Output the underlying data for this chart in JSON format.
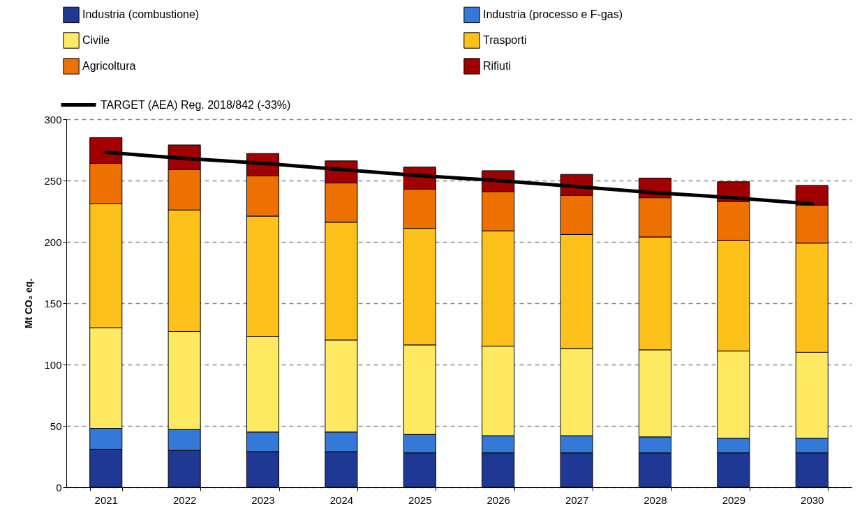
{
  "chart_data": {
    "type": "bar",
    "stacked": true,
    "ylabel": "Mt CO₂ eq.",
    "categories": [
      "2021",
      "2022",
      "2023",
      "2024",
      "2025",
      "2026",
      "2027",
      "2028",
      "2029",
      "2030"
    ],
    "ylim": [
      0,
      300
    ],
    "yticks": [
      0,
      50,
      100,
      150,
      200,
      250,
      300
    ],
    "grid": "y",
    "legend": "top left",
    "series": [
      {
        "name": "Industria (combustione)",
        "color": "#1f3893",
        "values": [
          31,
          30,
          29,
          29,
          28,
          28,
          28,
          28,
          28,
          28
        ]
      },
      {
        "name": "Industria (processo e F-gas)",
        "color": "#3579d8",
        "values": [
          17,
          17,
          16,
          16,
          15,
          14,
          14,
          13,
          12,
          12
        ]
      },
      {
        "name": "Civile",
        "color": "#fde962",
        "values": [
          82,
          80,
          78,
          75,
          73,
          73,
          71,
          71,
          71,
          70
        ]
      },
      {
        "name": "Trasporti",
        "color": "#fdc11c",
        "values": [
          101,
          99,
          98,
          96,
          95,
          94,
          93,
          92,
          90,
          89
        ]
      },
      {
        "name": "Agricoltura",
        "color": "#ec7100",
        "values": [
          33,
          33,
          33,
          32,
          32,
          32,
          32,
          32,
          32,
          31
        ]
      },
      {
        "name": "Rifiuti",
        "color": "#a00000",
        "values": [
          21,
          20,
          18,
          18,
          18,
          17,
          17,
          16,
          16,
          16
        ]
      },
      {
        "name": "TARGET (AEA) Reg. 2018/842 (-33%)",
        "type": "line",
        "color": "#000000",
        "values": [
          273,
          268,
          264,
          259,
          254,
          250,
          245,
          240,
          236,
          231
        ]
      }
    ]
  }
}
